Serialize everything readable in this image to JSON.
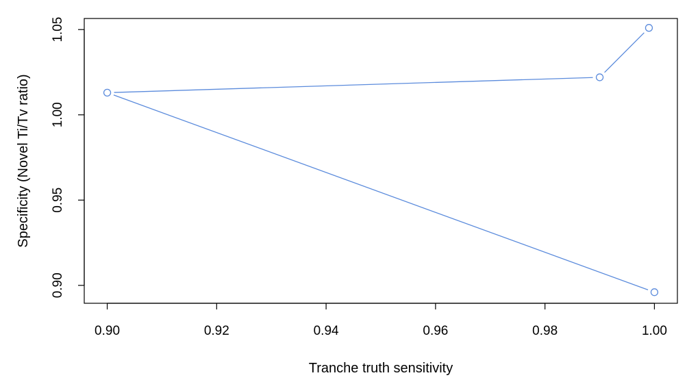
{
  "chart_data": {
    "type": "line",
    "xlabel": "Tranche truth sensitivity",
    "ylabel": "Specificity (Novel Ti/Tv ratio)",
    "xlim": [
      0.8958,
      1.0042
    ],
    "ylim": [
      0.8895,
      1.0565
    ],
    "x_ticks": [
      0.9,
      0.92,
      0.94,
      0.96,
      0.98,
      1.0
    ],
    "x_tick_labels": [
      "0.90",
      "0.92",
      "0.94",
      "0.96",
      "0.98",
      "1.00"
    ],
    "y_ticks": [
      0.9,
      0.95,
      1.0,
      1.05
    ],
    "y_tick_labels": [
      "0.90",
      "0.95",
      "1.00",
      "1.05"
    ],
    "grid": false,
    "series": [
      {
        "color": "#5b8bdc",
        "x": [
          1.0,
          0.9,
          0.99,
          0.999
        ],
        "y": [
          0.896,
          1.013,
          1.022,
          1.051
        ]
      }
    ]
  }
}
